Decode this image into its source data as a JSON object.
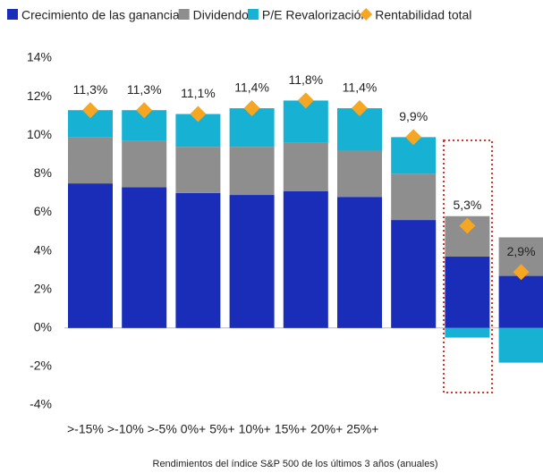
{
  "chart_data": {
    "type": "stacked_bar",
    "categories": [
      ">-15%",
      ">-10%",
      ">-5%",
      "0%+",
      "5%+",
      "10%+",
      "15%+",
      "20%+",
      "25%+"
    ],
    "series": [
      {
        "name": "Crecimiento de las ganancias",
        "color": "#1a2db8",
        "values": [
          7.5,
          7.3,
          7.0,
          6.9,
          7.1,
          6.8,
          5.6,
          3.7,
          2.7
        ]
      },
      {
        "name": "Dividendos",
        "color": "#8e8e8e",
        "values": [
          2.4,
          2.4,
          2.4,
          2.5,
          2.5,
          2.4,
          2.4,
          2.1,
          2.0
        ]
      },
      {
        "name": "P/E Revalorización",
        "color": "#17b1d3",
        "values": [
          1.4,
          1.6,
          1.7,
          2.0,
          2.2,
          2.2,
          1.9,
          -0.5,
          -1.8
        ]
      }
    ],
    "total": {
      "name": "Rentabilidad total",
      "color": "#f5a623",
      "marker": "diamond",
      "values": [
        11.3,
        11.3,
        11.1,
        11.4,
        11.8,
        11.4,
        9.9,
        5.3,
        2.9
      ],
      "value_labels": [
        "11,3%",
        "11,3%",
        "11,1%",
        "11,4%",
        "11,8%",
        "11,4%",
        "9,9%",
        "5,3%",
        "2,9%"
      ]
    },
    "x_label": "Rendimientos del índice S&P 500 de los últimos 3 años (anuales)",
    "ylim": [
      -4,
      14
    ],
    "yticks": [
      {
        "value": -4,
        "label": "-4%"
      },
      {
        "value": -2,
        "label": "-2%"
      },
      {
        "value": 0,
        "label": "0%"
      },
      {
        "value": 2,
        "label": "2%"
      },
      {
        "value": 4,
        "label": "4%"
      },
      {
        "value": 6,
        "label": "6%"
      },
      {
        "value": 8,
        "label": "8%"
      },
      {
        "value": 10,
        "label": "10%"
      },
      {
        "value": 12,
        "label": "12%"
      },
      {
        "value": 14,
        "label": "14%"
      }
    ],
    "grid": false
  }
}
